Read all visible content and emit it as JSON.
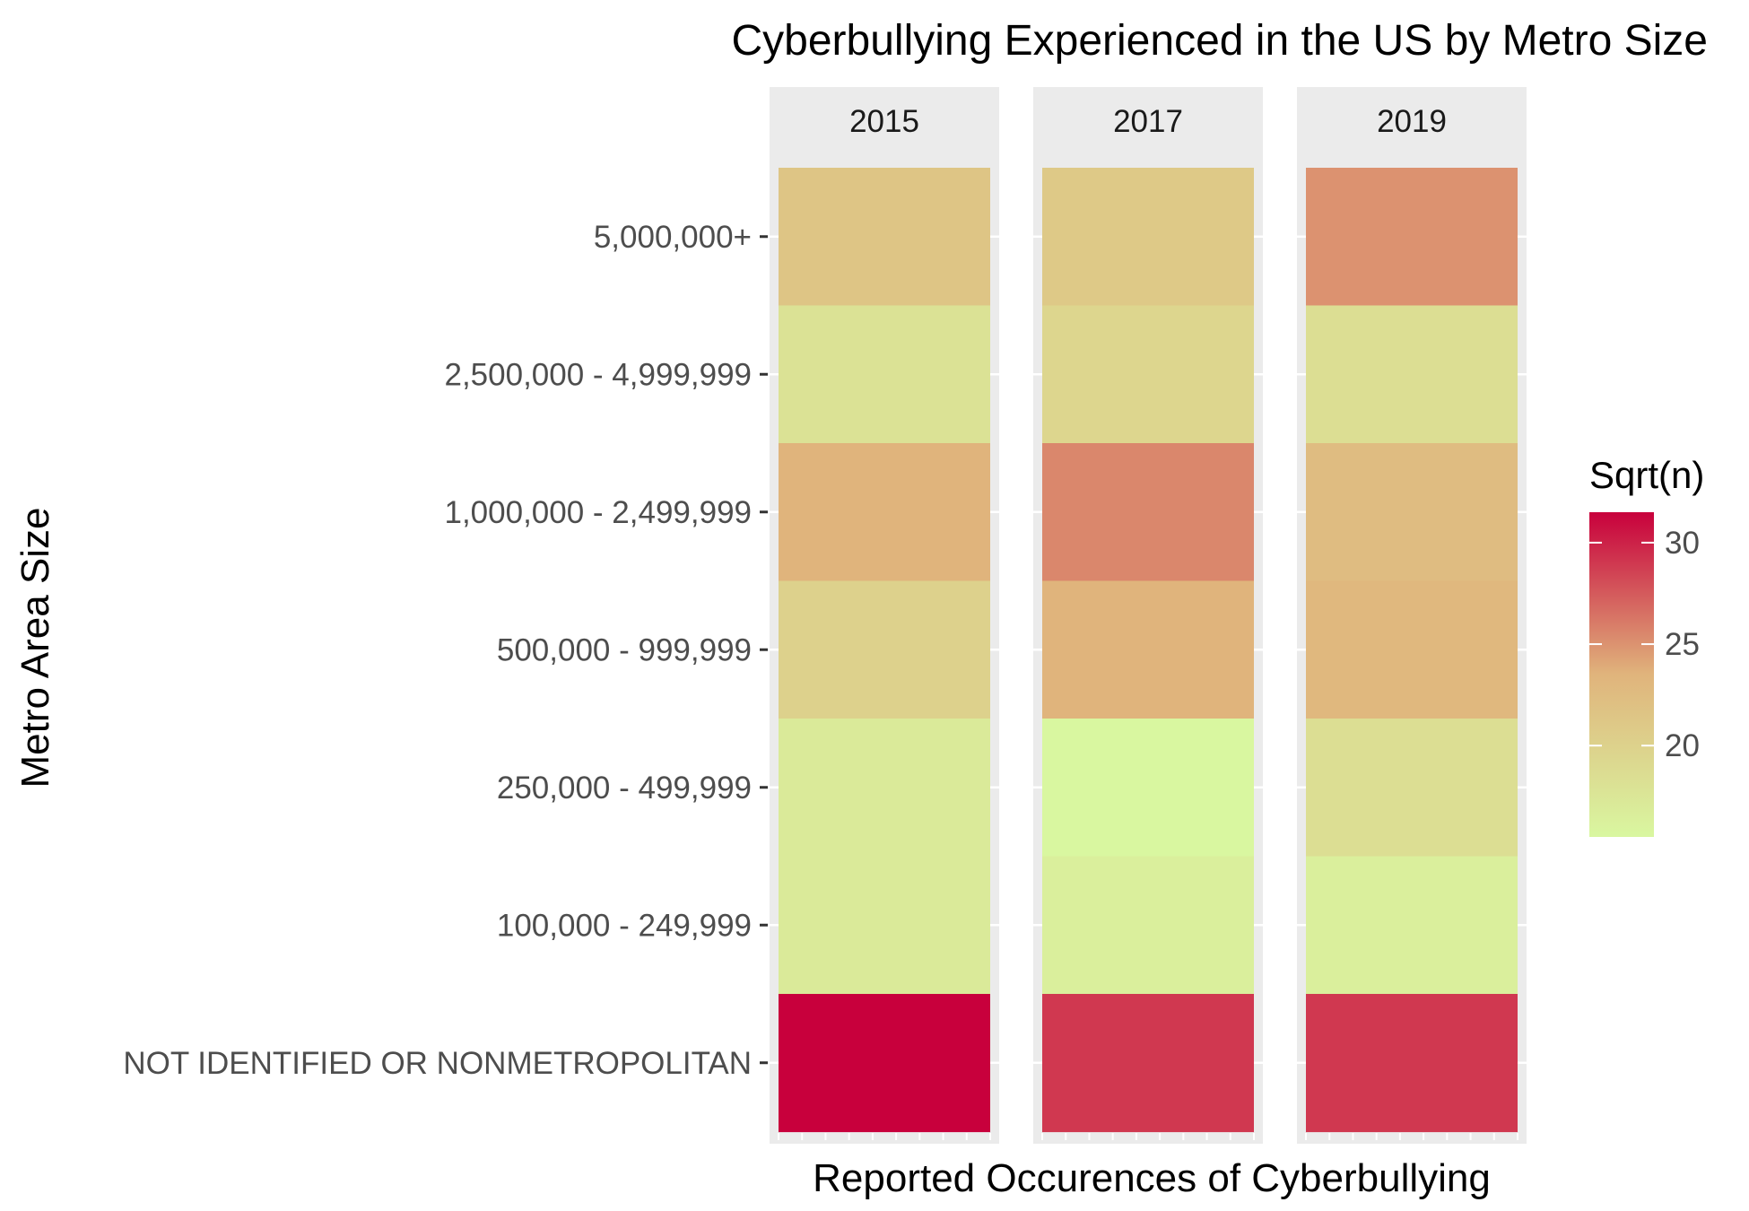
{
  "chart_data": {
    "type": "heatmap",
    "title": "Cyberbullying Experienced in the US by Metro Size",
    "xlabel": "Reported Occurences of Cyberbullying",
    "ylabel": "Metro Area Size",
    "facets": [
      "2015",
      "2017",
      "2019"
    ],
    "categories": [
      "5,000,000+",
      "2,500,000 - 4,999,999",
      "1,000,000 - 2,499,999",
      "500,000 - 999,999",
      "250,000 - 499,999",
      "100,000 - 249,999",
      "NOT IDENTIFIED OR NONMETROPOLITAN"
    ],
    "series": [
      {
        "name": "2015",
        "values": [
          21.5,
          18.0,
          23.5,
          20.0,
          17.0,
          17.0,
          31.5
        ]
      },
      {
        "name": "2017",
        "values": [
          21.0,
          19.5,
          25.5,
          23.5,
          15.5,
          16.5,
          29.0
        ]
      },
      {
        "name": "2019",
        "values": [
          25.0,
          18.5,
          22.5,
          23.0,
          18.5,
          16.5,
          29.0
        ]
      }
    ],
    "legend": {
      "title": "Sqrt(n)",
      "ticks": [
        "20",
        "25",
        "30"
      ],
      "tick_values": [
        20,
        25,
        30
      ],
      "range": [
        15.5,
        31.5
      ],
      "position": "right",
      "colors": {
        "low": "#d9f7a0",
        "mid": "#e0b47c",
        "high": "#c8003c"
      }
    },
    "grid": true
  }
}
